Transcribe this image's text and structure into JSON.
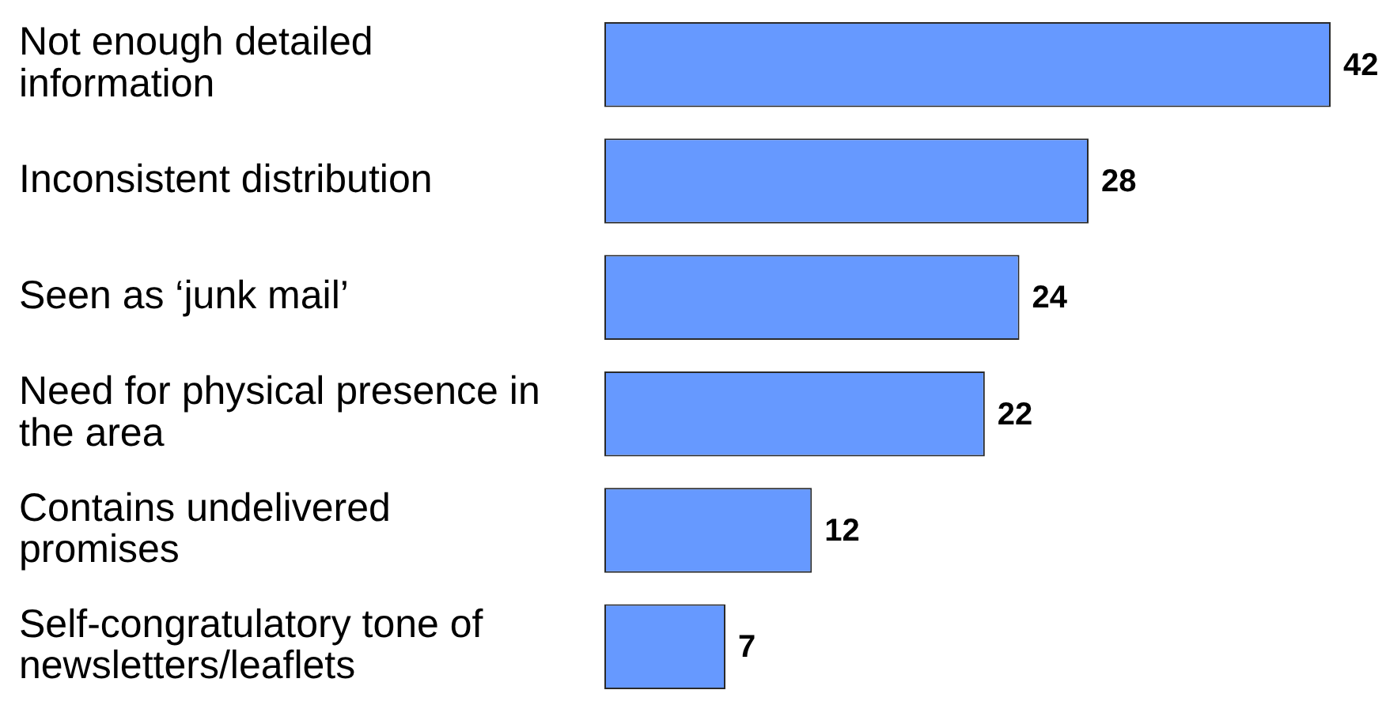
{
  "chart_data": {
    "type": "bar",
    "orientation": "horizontal",
    "categories": [
      "Not enough detailed information",
      "Inconsistent distribution",
      "Seen as ‘junk mail’",
      "Need for physical presence in the area",
      "Contains undelivered promises",
      "Self-congratulatory tone of newsletters/leaflets"
    ],
    "values": [
      42,
      28,
      24,
      22,
      12,
      7
    ],
    "color": "#6699ff",
    "data_labels": true,
    "legend": false,
    "tick_labels": "y"
  }
}
